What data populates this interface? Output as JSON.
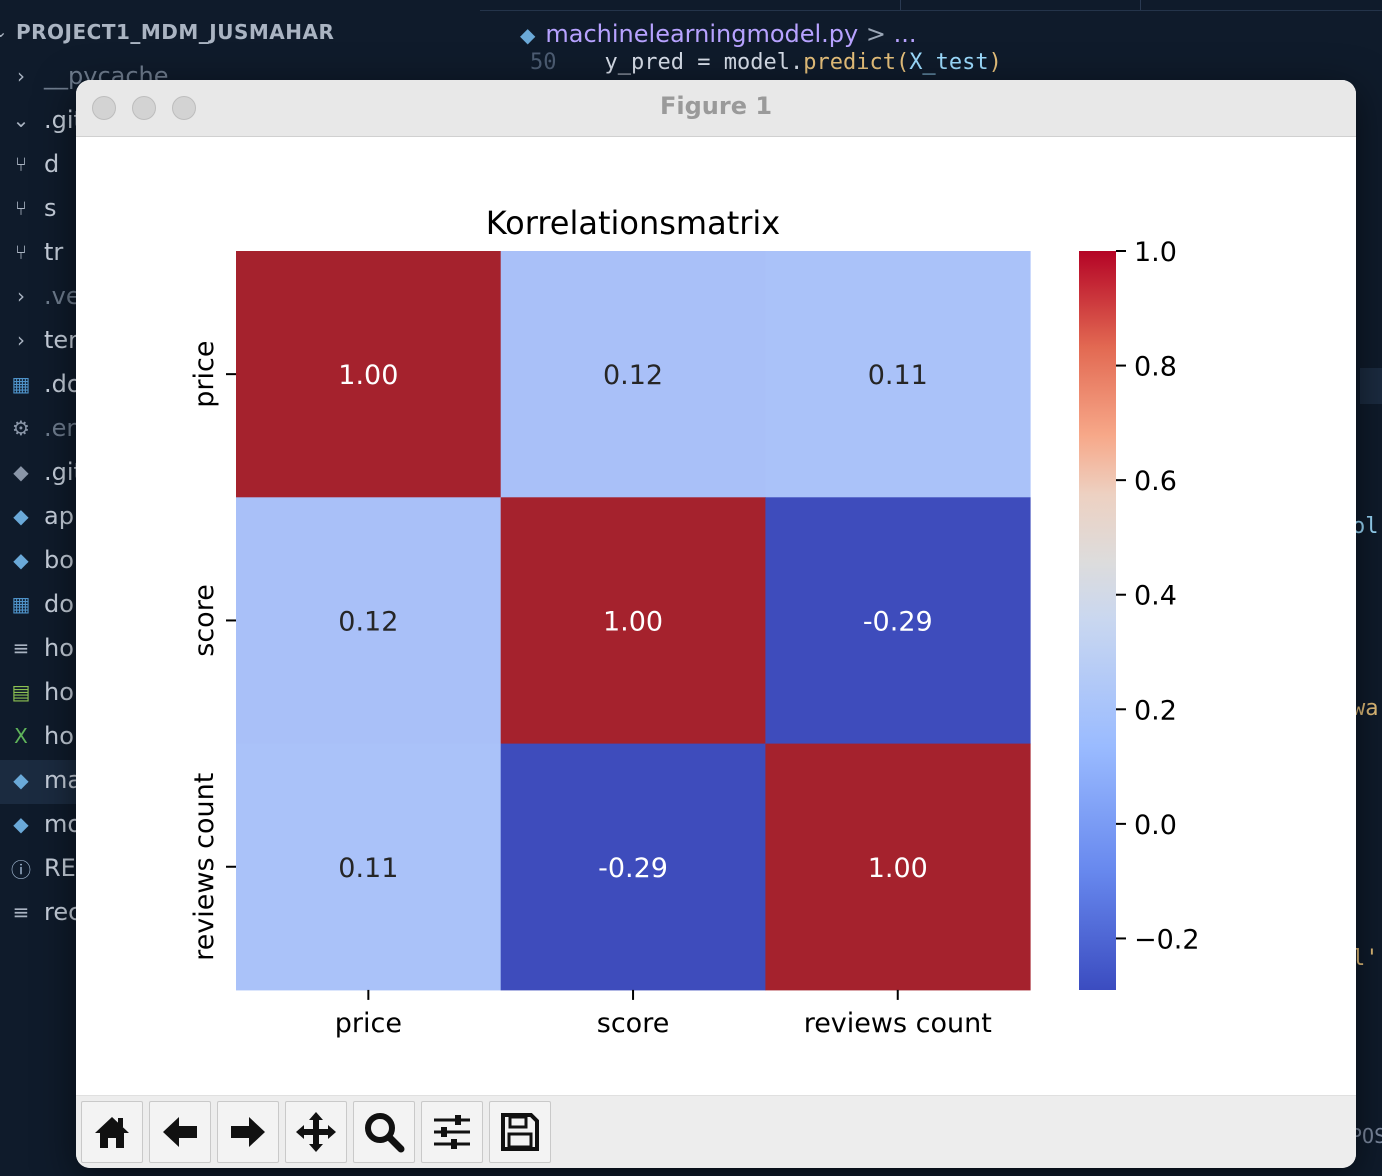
{
  "explorer": {
    "project_name": "PROJECT1_MDM_JUSMAHAR",
    "items": [
      {
        "label": "__pycache__",
        "icon": "chevron-right-icon"
      },
      {
        "label": ".git",
        "icon": "chevron-down-icon"
      },
      {
        "label": "d",
        "icon": "git-branch-icon"
      },
      {
        "label": "s",
        "icon": "git-branch-icon"
      },
      {
        "label": "tr",
        "icon": "git-branch-icon"
      },
      {
        "label": ".ve",
        "icon": "chevron-right-icon"
      },
      {
        "label": "ter",
        "icon": "chevron-right-icon"
      },
      {
        "label": ".do",
        "icon": "docker-icon"
      },
      {
        "label": ".en",
        "icon": "gear-icon"
      },
      {
        "label": ".git",
        "icon": "git-icon"
      },
      {
        "label": "ap",
        "icon": "python-icon"
      },
      {
        "label": "bo",
        "icon": "python-icon"
      },
      {
        "label": "do",
        "icon": "docker-icon"
      },
      {
        "label": "ho",
        "icon": "text-file-icon"
      },
      {
        "label": "ho",
        "icon": "csv-icon"
      },
      {
        "label": "ho",
        "icon": "excel-icon"
      },
      {
        "label": "ma",
        "icon": "python-icon"
      },
      {
        "label": "mo",
        "icon": "python-icon"
      },
      {
        "label": "RE",
        "icon": "info-icon"
      },
      {
        "label": "rec",
        "icon": "text-file-icon"
      }
    ]
  },
  "editor": {
    "breadcrumb_file": "machinelearningmodel.py",
    "breadcrumb_sep": ">",
    "breadcrumb_more": "...",
    "line_number": "50",
    "code_var": "y_pred",
    "code_eq": "=",
    "code_obj": "model.",
    "code_fn": "predict",
    "code_open": "(",
    "code_arg": "X_test",
    "code_close": ")",
    "frag_1": "ol",
    "frag_2": "wa",
    "frag_3": "l'",
    "frag_4": "POS"
  },
  "window": {
    "title": "Figure 1"
  },
  "toolbar": {
    "buttons": [
      "home-icon",
      "back-arrow-icon",
      "forward-arrow-icon",
      "pan-icon",
      "zoom-icon",
      "configure-subplots-icon",
      "save-icon"
    ]
  },
  "chart_data": {
    "type": "heatmap",
    "title": "Korrelationsmatrix",
    "x_categories": [
      "price",
      "score",
      "reviews count"
    ],
    "y_categories": [
      "price",
      "score",
      "reviews count"
    ],
    "values": [
      [
        1.0,
        0.12,
        0.11
      ],
      [
        0.12,
        1.0,
        -0.29
      ],
      [
        0.11,
        -0.29,
        1.0
      ]
    ],
    "annotations": [
      [
        "1.00",
        "0.12",
        "0.11"
      ],
      [
        "0.12",
        "1.00",
        "-0.29"
      ],
      [
        "0.11",
        "-0.29",
        "1.00"
      ]
    ],
    "colormap": "coolwarm",
    "vmin": -0.29,
    "vmax": 1.0,
    "colorbar_ticks": [
      1.0,
      0.8,
      0.6,
      0.4,
      0.2,
      0.0,
      -0.2
    ],
    "colorbar_tick_labels": [
      "1.0",
      "0.8",
      "0.6",
      "0.4",
      "0.2",
      "0.0",
      "−0.2"
    ],
    "colors": {
      "high": "#a5222d",
      "low": "#3e4cbc",
      "near_zero_1": "#a9c0f8",
      "near_zero_2": "#aac2f9"
    },
    "grid": false
  }
}
